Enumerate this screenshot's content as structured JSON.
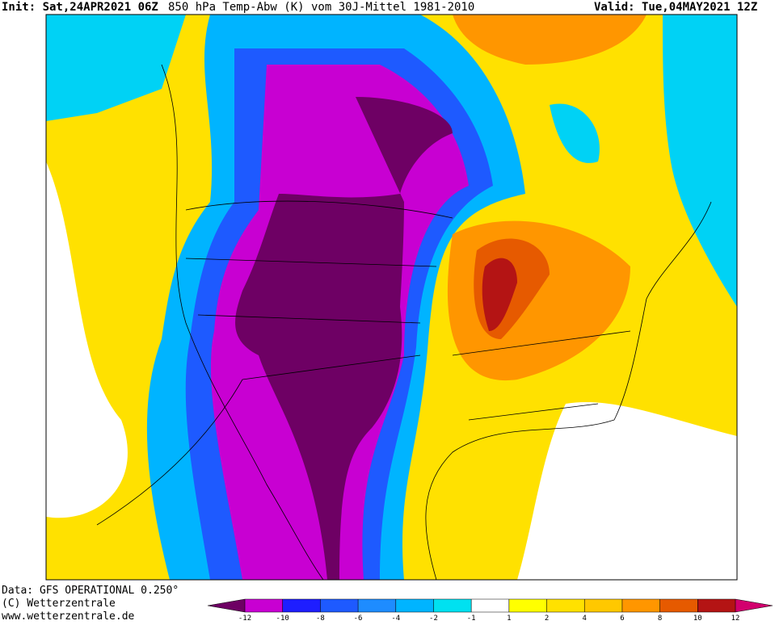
{
  "header": {
    "init": "Init: Sat,24APR2021 06Z",
    "title": "850 hPa Temp-Abw (K) vom 30J-Mittel 1981-2010",
    "valid": "Valid: Tue,04MAY2021 12Z"
  },
  "footer": [
    "Data: GFS OPERATIONAL 0.250°",
    "(C) Wetterzentrale",
    "www.wetterzentrale.de"
  ],
  "colorbar": {
    "ticks": [
      -12,
      -10,
      -8,
      -6,
      -4,
      -2,
      -1,
      1,
      2,
      4,
      6,
      8,
      10,
      12
    ],
    "colors": [
      "#6e0064",
      "#c800d2",
      "#1e1eff",
      "#1e5aff",
      "#1e8cff",
      "#00b4ff",
      "#00e1f0",
      "#ffffff",
      "#ffff00",
      "#ffe100",
      "#ffc800",
      "#ff9600",
      "#e65a00",
      "#b41414",
      "#d2006e"
    ]
  }
}
